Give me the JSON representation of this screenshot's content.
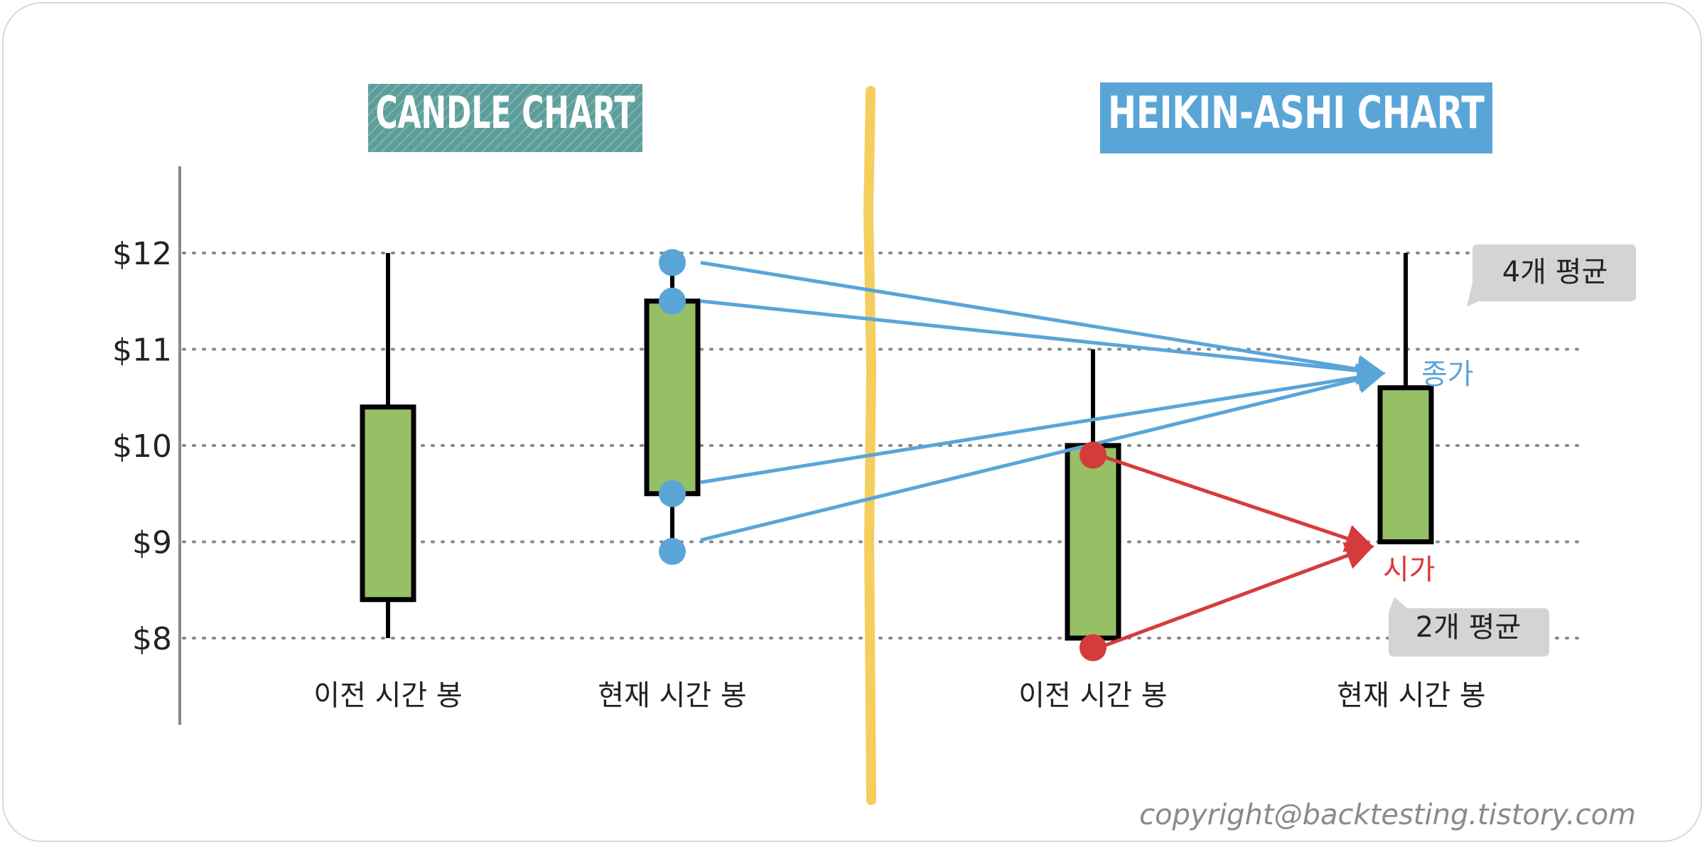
{
  "colors": {
    "candle_fill": "#96bf66",
    "candle_stroke": "#000000",
    "candle_title_bg": "#5d9e9b",
    "heikin_title_bg": "#5aa5d8",
    "divider": "#f4cf5e",
    "close_color": "#5aa5d8",
    "open_color": "#d63b3b",
    "note_bg": "#d4d4d4",
    "grid": "#888888"
  },
  "titles": {
    "candle": "CANDLE CHART",
    "heikin": "HEIKIN-ASHI CHART"
  },
  "y_ticks": [
    "$12",
    "$11",
    "$10",
    "$9",
    "$8"
  ],
  "x_labels": {
    "candle_prev": "이전 시간 봉",
    "candle_curr": "현재 시간 봉",
    "heikin_prev": "이전 시간 봉",
    "heikin_curr": "현재 시간 봉"
  },
  "annotations": {
    "close_label": "종가",
    "open_label": "시가",
    "avg4": "4개 평균",
    "avg2": "2개 평균"
  },
  "copyright": "copyright@backtesting.tistory.com",
  "chart_data": {
    "type": "candlestick",
    "y_range": [
      8,
      12
    ],
    "grid": true,
    "candle_chart": [
      {
        "label": "이전 시간 봉",
        "open": 8.4,
        "close": 10.4,
        "high": 12,
        "low": 8
      },
      {
        "label": "현재 시간 봉",
        "open": 9.5,
        "close": 11.5,
        "high": 11.9,
        "low": 8.9
      }
    ],
    "heikin_ashi_chart": [
      {
        "label": "이전 시간 봉",
        "open": 8,
        "close": 10,
        "high": 11,
        "low": 8
      },
      {
        "label": "현재 시간 봉",
        "open": 9,
        "close": 10.6,
        "high": 12,
        "low": 9
      }
    ],
    "averaged_points": {
      "close_inputs": [
        11.9,
        11.5,
        9.5,
        8.9
      ],
      "open_inputs": [
        9.9,
        7.9
      ]
    }
  }
}
